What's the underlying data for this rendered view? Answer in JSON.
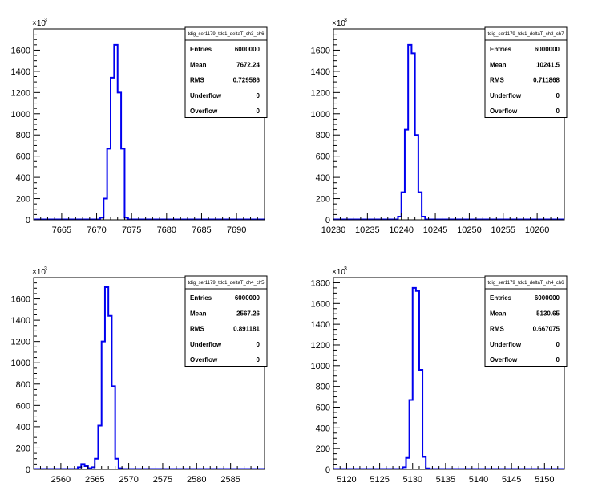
{
  "chart_data": [
    {
      "type": "bar",
      "title": "tdig_ser1179_tdc1_deltaT_ch3_ch6",
      "y_multiplier": "×10",
      "y_multiplier_exp": "3",
      "xlim": [
        7661,
        7694
      ],
      "ylim": [
        0,
        1800
      ],
      "xticks": [
        7665,
        7670,
        7675,
        7680,
        7685,
        7690
      ],
      "yticks": [
        0,
        200,
        400,
        600,
        800,
        1000,
        1200,
        1400,
        1600
      ],
      "bin_width": 0.5,
      "bins_x": [
        7670.5,
        7671,
        7671.5,
        7672,
        7672.5,
        7673,
        7673.5,
        7674
      ],
      "bins_y": [
        20,
        200,
        670,
        1340,
        1650,
        1200,
        670,
        20
      ],
      "stats": [
        {
          "label": "Entries",
          "value": "6000000"
        },
        {
          "label": "Mean",
          "value": "7672.24"
        },
        {
          "label": "RMS",
          "value": "0.729586"
        },
        {
          "label": "Underflow",
          "value": "0"
        },
        {
          "label": "Overflow",
          "value": "0"
        }
      ]
    },
    {
      "type": "bar",
      "title": "tdig_ser1179_tdc1_deltaT_ch3_ch7",
      "y_multiplier": "×10",
      "y_multiplier_exp": "3",
      "xlim": [
        10230,
        10264
      ],
      "ylim": [
        0,
        1800
      ],
      "xticks": [
        10230,
        10235,
        10240,
        10245,
        10250,
        10255,
        10260
      ],
      "yticks": [
        0,
        200,
        400,
        600,
        800,
        1000,
        1200,
        1400,
        1600
      ],
      "bin_width": 0.5,
      "bins_x": [
        10239.5,
        10240,
        10240.5,
        10241,
        10241.5,
        10242,
        10242.5,
        10243
      ],
      "bins_y": [
        30,
        260,
        850,
        1650,
        1570,
        800,
        260,
        30
      ],
      "stats": [
        {
          "label": "Entries",
          "value": "6000000"
        },
        {
          "label": "Mean",
          "value": "10241.5"
        },
        {
          "label": "RMS",
          "value": "0.711868"
        },
        {
          "label": "Underflow",
          "value": "0"
        },
        {
          "label": "Overflow",
          "value": "0"
        }
      ]
    },
    {
      "type": "bar",
      "title": "tdig_ser1179_tdc1_deltaT_ch4_ch5",
      "y_multiplier": "×10",
      "y_multiplier_exp": "3",
      "xlim": [
        2556,
        2590
      ],
      "ylim": [
        0,
        1800
      ],
      "xticks": [
        2560,
        2565,
        2570,
        2575,
        2580,
        2585
      ],
      "yticks": [
        0,
        200,
        400,
        600,
        800,
        1000,
        1200,
        1400,
        1600
      ],
      "bin_width": 0.5,
      "bins_x": [
        2562.5,
        2563,
        2563.5,
        2564,
        2564.5,
        2565,
        2565.5,
        2566,
        2566.5,
        2567,
        2567.5,
        2568,
        2568.5
      ],
      "bins_y": [
        20,
        50,
        30,
        10,
        20,
        100,
        410,
        1200,
        1710,
        1440,
        780,
        100,
        10
      ],
      "stats": [
        {
          "label": "Entries",
          "value": "6000000"
        },
        {
          "label": "Mean",
          "value": "2567.26"
        },
        {
          "label": "RMS",
          "value": "0.891181"
        },
        {
          "label": "Underflow",
          "value": "0"
        },
        {
          "label": "Overflow",
          "value": "0"
        }
      ]
    },
    {
      "type": "bar",
      "title": "tdig_ser1179_tdc1_deltaT_ch4_ch6",
      "y_multiplier": "×10",
      "y_multiplier_exp": "3",
      "xlim": [
        5118,
        5153
      ],
      "ylim": [
        0,
        1850
      ],
      "xticks": [
        5120,
        5125,
        5130,
        5135,
        5140,
        5145,
        5150
      ],
      "yticks": [
        0,
        200,
        400,
        600,
        800,
        1000,
        1200,
        1400,
        1600,
        1800
      ],
      "bin_width": 0.5,
      "bins_x": [
        5128.5,
        5129,
        5129.5,
        5130,
        5130.5,
        5131,
        5131.5,
        5132
      ],
      "bins_y": [
        20,
        110,
        670,
        1750,
        1720,
        960,
        120,
        10
      ],
      "stats": [
        {
          "label": "Entries",
          "value": "6000000"
        },
        {
          "label": "Mean",
          "value": "5130.65"
        },
        {
          "label": "RMS",
          "value": "0.667075"
        },
        {
          "label": "Underflow",
          "value": "0"
        },
        {
          "label": "Overflow",
          "value": "0"
        }
      ]
    }
  ]
}
